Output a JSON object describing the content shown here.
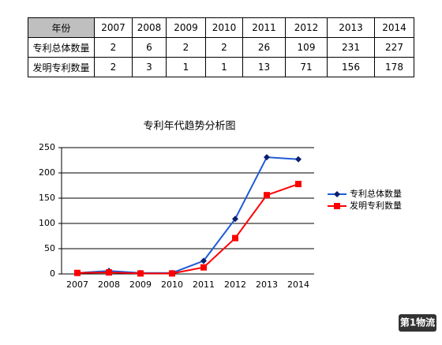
{
  "table": {
    "header": [
      "年份",
      "2007",
      "2008",
      "2009",
      "2010",
      "2011",
      "2012",
      "2013",
      "2014"
    ],
    "rows": [
      [
        "专利总体数量",
        "2",
        "6",
        "2",
        "2",
        "26",
        "109",
        "231",
        "227"
      ],
      [
        "发明专利数量",
        "2",
        "3",
        "1",
        "1",
        "13",
        "71",
        "156",
        "178"
      ]
    ]
  },
  "chart_data": {
    "type": "line",
    "title": "专利年代趋势分析图",
    "categories": [
      "2007",
      "2008",
      "2009",
      "2010",
      "2011",
      "2012",
      "2013",
      "2014"
    ],
    "series": [
      {
        "name": "专利总体数量",
        "color": "#1f5bd6",
        "marker_color": "#0b1f6e",
        "marker": "diamond",
        "values": [
          2,
          6,
          2,
          2,
          26,
          109,
          231,
          227
        ]
      },
      {
        "name": "发明专利数量",
        "color": "#ff0000",
        "marker_color": "#ff0000",
        "marker": "square",
        "values": [
          2,
          3,
          1,
          1,
          13,
          71,
          156,
          178
        ]
      }
    ],
    "ylim": [
      0,
      250
    ],
    "yticks": [
      0,
      50,
      100,
      150,
      200,
      250
    ],
    "grid": true,
    "legend": "right"
  },
  "watermark": "第1物流"
}
